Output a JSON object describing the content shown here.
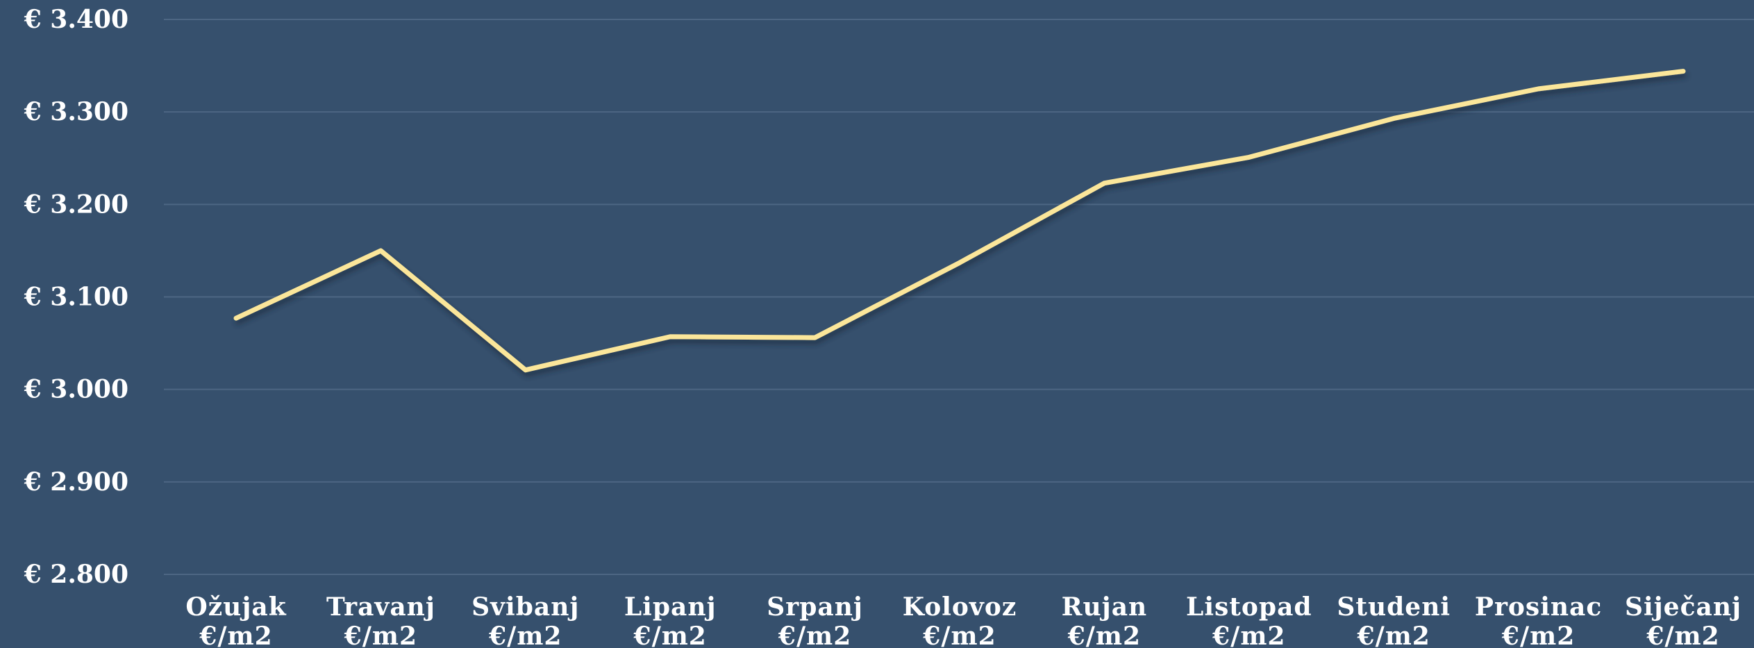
{
  "chart_data": {
    "type": "line",
    "title": "",
    "xlabel": "",
    "ylabel": "",
    "ylim": [
      2800,
      3400
    ],
    "yticks": [
      2800,
      2900,
      3000,
      3100,
      3200,
      3300,
      3400
    ],
    "ytick_labels": [
      "€ 2.800",
      "€ 2.900",
      "€ 3.000",
      "€ 3.100",
      "€ 3.200",
      "€ 3.300",
      "€ 3.400"
    ],
    "grid": true,
    "categories": [
      [
        "Ožujak",
        "€/m2"
      ],
      [
        "Travanj",
        "€/m2"
      ],
      [
        "Svibanj",
        "€/m2"
      ],
      [
        "Lipanj",
        "€/m2"
      ],
      [
        "Srpanj",
        "€/m2"
      ],
      [
        "Kolovoz",
        "€/m2"
      ],
      [
        "Rujan",
        "€/m2"
      ],
      [
        "Listopad",
        "€/m2"
      ],
      [
        "Studeni",
        "€/m2"
      ],
      [
        "Prosinac",
        "€/m2"
      ],
      [
        "Siječanj",
        "€/m2"
      ]
    ],
    "series": [
      {
        "values": [
          3077,
          3150,
          3021,
          3057,
          3056,
          3137,
          3223,
          3251,
          3293,
          3325,
          3344
        ],
        "color": "#fbe69a"
      }
    ],
    "colors": {
      "background": "#36506d",
      "grid": "#4d6683",
      "text": "#ffffff"
    }
  }
}
